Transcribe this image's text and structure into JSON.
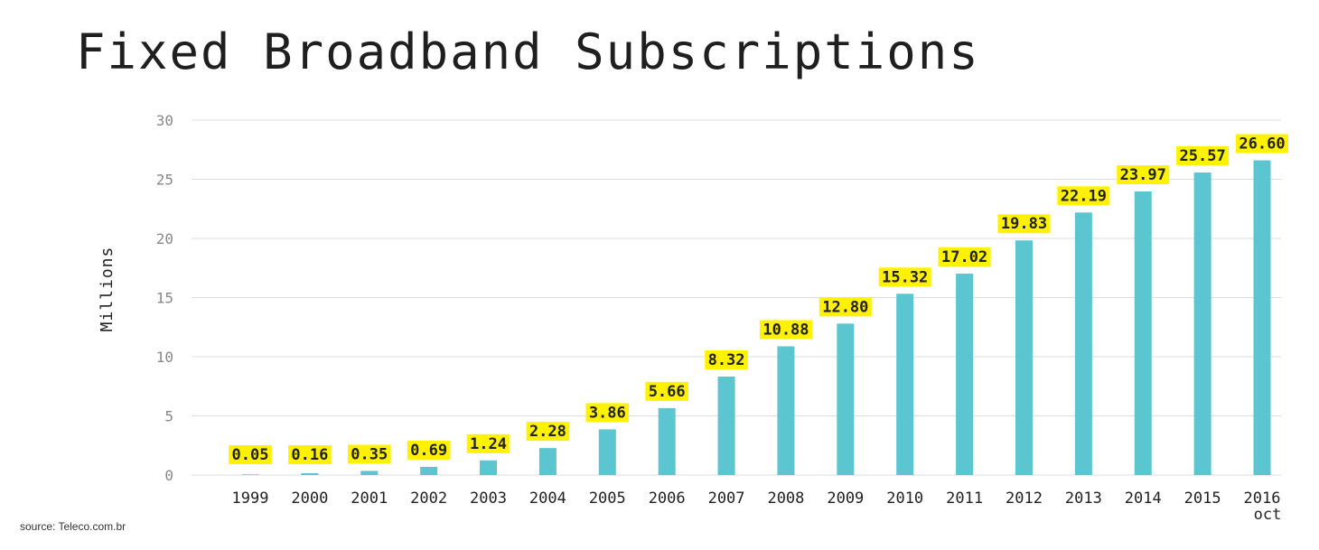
{
  "source": "source: Teleco.com.br",
  "colors": {
    "bar": "#5bc5d0",
    "label_bg": "#fff200",
    "grid": "#dddddd"
  },
  "chart_data": {
    "type": "bar",
    "title": "Fixed Broadband Subscriptions",
    "xlabel": "",
    "ylabel": "Millions",
    "ylim": [
      0,
      30
    ],
    "yticks": [
      0,
      5,
      10,
      15,
      20,
      25,
      30
    ],
    "grid": true,
    "categories": [
      "1999",
      "2000",
      "2001",
      "2002",
      "2003",
      "2004",
      "2005",
      "2006",
      "2007",
      "2008",
      "2009",
      "2010",
      "2011",
      "2012",
      "2013",
      "2014",
      "2015",
      "2016"
    ],
    "category_sublabels": {
      "2016": "oct"
    },
    "values": [
      0.05,
      0.16,
      0.35,
      0.69,
      1.24,
      2.28,
      3.86,
      5.66,
      8.32,
      10.88,
      12.8,
      15.32,
      17.02,
      19.83,
      22.19,
      23.97,
      25.57,
      26.6
    ],
    "data_labels": [
      "0.05",
      "0.16",
      "0.35",
      "0.69",
      "1.24",
      "2.28",
      "3.86",
      "5.66",
      "8.32",
      "10.88",
      "12.80",
      "15.32",
      "17.02",
      "19.83",
      "22.19",
      "23.97",
      "25.57",
      "26.60"
    ]
  }
}
